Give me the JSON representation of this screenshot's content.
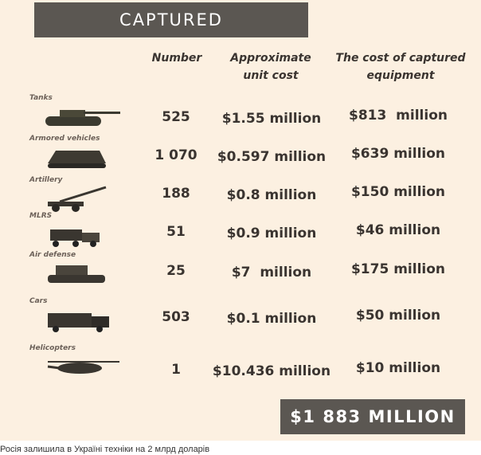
{
  "header": {
    "title": "CAPTURED"
  },
  "table": {
    "columns": [
      "Number",
      "Approximate unit cost",
      "The cost of captured equipment"
    ],
    "rows": [
      {
        "label": "Tanks",
        "number": "525",
        "unit_cost": "$1.55 million",
        "total": "$813  million"
      },
      {
        "label": "Armored vehicles",
        "number": "1 070",
        "unit_cost": "$0.597 million",
        "total": "$639 million"
      },
      {
        "label": "Artillery",
        "number": "188",
        "unit_cost": "$0.8 million",
        "total": "$150 million"
      },
      {
        "label": "MLRS",
        "number": "51",
        "unit_cost": "$0.9 million",
        "total": "$46 million"
      },
      {
        "label": "Air defense",
        "number": "25",
        "unit_cost": "$7  million",
        "total": "$175 million"
      },
      {
        "label": "Cars",
        "number": "503",
        "unit_cost": "$0.1 million",
        "total": "$50 million"
      },
      {
        "label": "Helicopters",
        "number": "1",
        "unit_cost": "$10.436 million",
        "total": "$10 million"
      }
    ]
  },
  "total": "$1 883 MILLION",
  "caption": "Росія залишила в Україні техніки на 2 млрд доларів"
}
